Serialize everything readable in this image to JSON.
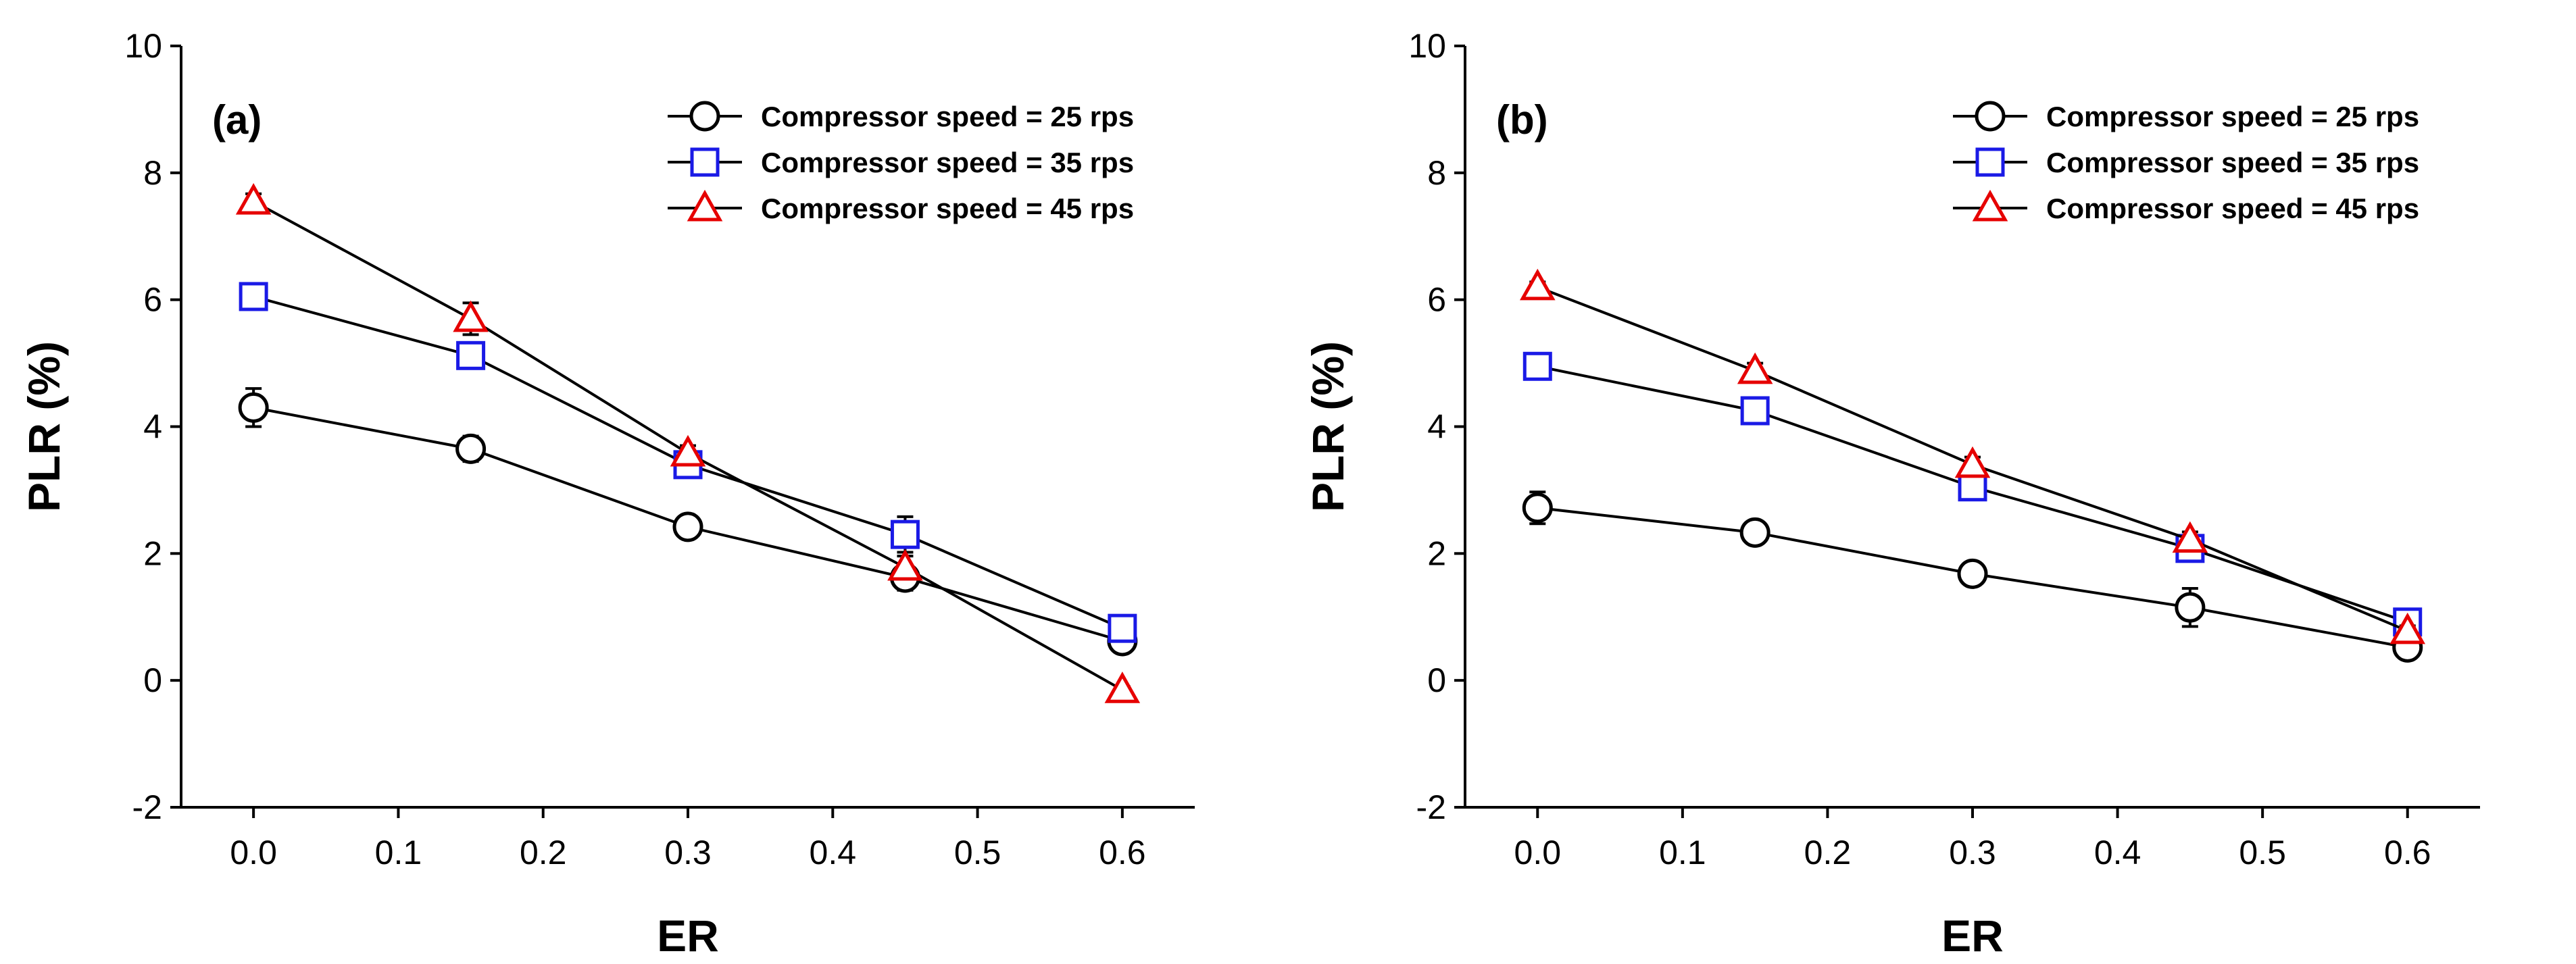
{
  "chart_data": [
    {
      "type": "line",
      "panel_label": "(a)",
      "xlabel": "ER",
      "ylabel": "PLR (%)",
      "xlim": [
        -0.05,
        0.65
      ],
      "ylim": [
        -2,
        10
      ],
      "x_ticks": [
        0.0,
        0.1,
        0.2,
        0.3,
        0.4,
        0.5,
        0.6
      ],
      "x_tick_labels": [
        "0.0",
        "0.1",
        "0.2",
        "0.3",
        "0.4",
        "0.5",
        "0.6"
      ],
      "y_ticks": [
        -2,
        0,
        2,
        4,
        6,
        8,
        10
      ],
      "y_tick_labels": [
        "-2",
        "0",
        "2",
        "4",
        "6",
        "8",
        "10"
      ],
      "legend_position": "top-right",
      "x": [
        0.0,
        0.15,
        0.3,
        0.45,
        0.6
      ],
      "series": [
        {
          "name": "Compressor speed = 25 rps",
          "marker": "circle",
          "color": "#000000",
          "values": [
            4.3,
            3.65,
            2.42,
            1.62,
            0.62
          ],
          "errors": [
            0.3,
            0.2,
            0.12,
            0.2,
            0.08
          ]
        },
        {
          "name": "Compressor speed = 35 rps",
          "marker": "square",
          "color": "#1a1ae6",
          "values": [
            6.05,
            5.12,
            3.4,
            2.3,
            0.82
          ],
          "errors": [
            0.12,
            0.15,
            0.12,
            0.28,
            0.1
          ]
        },
        {
          "name": "Compressor speed = 45 rps",
          "marker": "triangle",
          "color": "#e60000",
          "values": [
            7.55,
            5.7,
            3.58,
            1.78,
            -0.15
          ],
          "errors": [
            0.12,
            0.25,
            0.12,
            0.18,
            0.05
          ]
        }
      ]
    },
    {
      "type": "line",
      "panel_label": "(b)",
      "xlabel": "ER",
      "ylabel": "PLR (%)",
      "xlim": [
        -0.05,
        0.65
      ],
      "ylim": [
        -2,
        10
      ],
      "x_ticks": [
        0.0,
        0.1,
        0.2,
        0.3,
        0.4,
        0.5,
        0.6
      ],
      "x_tick_labels": [
        "0.0",
        "0.1",
        "0.2",
        "0.3",
        "0.4",
        "0.5",
        "0.6"
      ],
      "y_ticks": [
        -2,
        0,
        2,
        4,
        6,
        8,
        10
      ],
      "y_tick_labels": [
        "-2",
        "0",
        "2",
        "4",
        "6",
        "8",
        "10"
      ],
      "legend_position": "top-right",
      "x": [
        0.0,
        0.15,
        0.3,
        0.45,
        0.6
      ],
      "series": [
        {
          "name": "Compressor speed = 25 rps",
          "marker": "circle",
          "color": "#000000",
          "values": [
            2.72,
            2.33,
            1.68,
            1.15,
            0.52
          ],
          "errors": [
            0.25,
            0.15,
            0.1,
            0.3,
            0.1
          ]
        },
        {
          "name": "Compressor speed = 35 rps",
          "marker": "square",
          "color": "#1a1ae6",
          "values": [
            4.95,
            4.25,
            3.05,
            2.08,
            0.92
          ],
          "errors": [
            0.1,
            0.12,
            0.15,
            0.15,
            0.1
          ]
        },
        {
          "name": "Compressor speed = 45 rps",
          "marker": "triangle",
          "color": "#e60000",
          "values": [
            6.2,
            4.88,
            3.4,
            2.22,
            0.78
          ],
          "errors": [
            0.08,
            0.12,
            0.12,
            0.12,
            0.08
          ]
        }
      ]
    }
  ]
}
